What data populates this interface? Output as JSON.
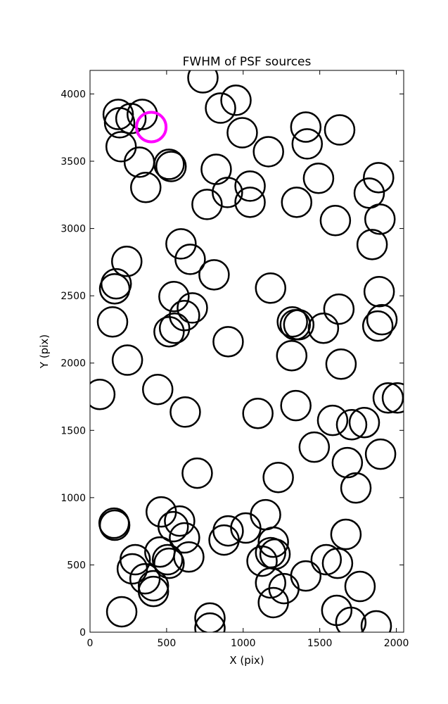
{
  "chart_data": {
    "type": "scatter",
    "title": "FWHM of PSF sources",
    "x_label": "X (pix)",
    "y_label": "Y (pix)",
    "xlim": [
      0,
      2048
    ],
    "ylim": [
      0,
      4175
    ],
    "xticks": [
      0,
      500,
      1000,
      1500,
      2000
    ],
    "yticks": [
      0,
      500,
      1000,
      1500,
      2000,
      2500,
      3000,
      3500,
      4000
    ],
    "series": [
      {
        "color": "#000000",
        "x": [
          737,
          953,
          852,
          184,
          341,
          267,
          193,
          203,
          322,
          516,
          529,
          364,
          994,
          1165,
          824,
          1409,
          1418,
          1630,
          1492,
          1045,
          897,
          764,
          1045,
          1349,
          1602,
          1884,
          1823,
          1893,
          1842,
          594,
          654,
          240,
          171,
          161,
          810,
          1179,
          548,
          668,
          1888,
          1625,
          617,
          147,
          516,
          552,
          1340,
          1363,
          1321,
          1524,
          1906,
          1879,
          902,
          1317,
          1639,
          244,
          64,
          442,
          1947,
          2007,
          622,
          1096,
          1344,
          1584,
          1708,
          1791,
          1464,
          1897,
          1680,
          1736,
          700,
          1229,
          465,
          157,
          161,
          585,
          543,
          1146,
          1017,
          902,
          875,
          1671,
          617,
          1197,
          1179,
          1123,
          1208,
          645,
          456,
          506,
          516,
          295,
          276,
          359,
          414,
          414,
          1542,
          1616,
          1409,
          1179,
          1266,
          1197,
          1763,
          1611,
          1703,
          1869,
          207,
          783,
          783
        ],
        "y": [
          4120,
          3953,
          3895,
          3848,
          3848,
          3817,
          3786,
          3608,
          3493,
          3477,
          3461,
          3305,
          3712,
          3571,
          3440,
          3754,
          3629,
          3733,
          3373,
          3315,
          3268,
          3179,
          3195,
          3195,
          3059,
          3378,
          3263,
          3069,
          2881,
          2886,
          2771,
          2756,
          2589,
          2552,
          2656,
          2557,
          2494,
          2410,
          2531,
          2401,
          2353,
          2306,
          2233,
          2259,
          2285,
          2285,
          2306,
          2259,
          2322,
          2275,
          2159,
          2055,
          1992,
          2022,
          1767,
          1804,
          1741,
          1741,
          1636,
          1626,
          1684,
          1574,
          1542,
          1558,
          1375,
          1323,
          1260,
          1072,
          1182,
          1150,
          894,
          810,
          795,
          826,
          784,
          873,
          774,
          753,
          685,
          727,
          701,
          669,
          591,
          528,
          580,
          559,
          596,
          539,
          512,
          539,
          471,
          397,
          345,
          303,
          539,
          512,
          418,
          366,
          324,
          220,
          340,
          162,
          73,
          47,
          152,
          105,
          31
        ]
      },
      {
        "color": "#ff00ff",
        "x": [
          400
        ],
        "y": [
          3754
        ]
      }
    ]
  }
}
